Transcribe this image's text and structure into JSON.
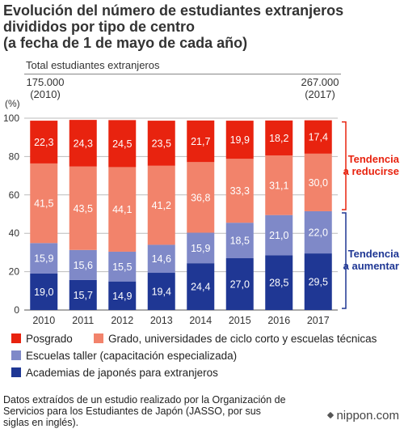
{
  "title_lines": [
    "Evolución del número de estudiantes extranjeros",
    "divididos por tipo de centro",
    "(a fecha de 1 de mayo de cada año)"
  ],
  "total_header": "Total estudiantes extranjeros",
  "total_start": {
    "value": "175.000",
    "year": "(2010)"
  },
  "total_end": {
    "value": "267.000",
    "year": "(2017)"
  },
  "chart_data": {
    "type": "bar",
    "stacked": true,
    "categories": [
      "2010",
      "2011",
      "2012",
      "2013",
      "2014",
      "2015",
      "2016",
      "2017"
    ],
    "ylabel": "(%)",
    "ylim": [
      0,
      100
    ],
    "yticks": [
      "0",
      "20",
      "40",
      "60",
      "80",
      "100"
    ],
    "series": [
      {
        "key": "academias",
        "name": "Academias de japonés para extranjeros",
        "color": "#1f3794",
        "values": [
          19.0,
          15.7,
          14.9,
          19.4,
          24.4,
          27.0,
          28.5,
          29.5
        ],
        "labels": [
          "19,0",
          "15,7",
          "14,9",
          "19,4",
          "24,4",
          "27,0",
          "28,5",
          "29,5"
        ]
      },
      {
        "key": "escuelas",
        "name": "Escuelas taller (capacitación especializada)",
        "color": "#7f89c8",
        "values": [
          15.9,
          15.6,
          15.5,
          14.6,
          15.9,
          18.5,
          21.0,
          22.0
        ],
        "labels": [
          "15,9",
          "15,6",
          "15,5",
          "14,6",
          "15,9",
          "18,5",
          "21,0",
          "22,0"
        ]
      },
      {
        "key": "grado",
        "name": "Grado, universidades de ciclo corto y escuelas técnicas",
        "color": "#f2836b",
        "values": [
          41.5,
          43.5,
          44.1,
          41.2,
          36.8,
          33.3,
          31.1,
          30.0
        ],
        "labels": [
          "41,5",
          "43,5",
          "44,1",
          "41,2",
          "36,8",
          "33,3",
          "31,1",
          "30,0"
        ]
      },
      {
        "key": "posgrado",
        "name": "Posgrado",
        "color": "#e8230f",
        "values": [
          22.3,
          24.3,
          24.5,
          23.5,
          21.7,
          19.9,
          18.2,
          17.4
        ],
        "labels": [
          "22,3",
          "24,3",
          "24,5",
          "23,5",
          "21,7",
          "19,9",
          "18,2",
          "17,4"
        ]
      }
    ],
    "annotations": [
      {
        "text_lines": [
          "Tendencia",
          "a reducirse"
        ],
        "color": "#e8230f",
        "applies_to": [
          "grado",
          "posgrado"
        ]
      },
      {
        "text_lines": [
          "Tendencia",
          "a aumentar"
        ],
        "color": "#1f3794",
        "applies_to": [
          "academias",
          "escuelas"
        ]
      }
    ]
  },
  "legend": {
    "posgrado": "Posgrado",
    "grado": "Grado, universidades de ciclo corto y escuelas técnicas",
    "escuelas": "Escuelas taller (capacitación especializada)",
    "academias": "Academias de japonés para extranjeros"
  },
  "colors": {
    "posgrado": "#e8230f",
    "grado": "#f2836b",
    "escuelas": "#7f89c8",
    "academias": "#1f3794"
  },
  "source_lines": [
    "Datos extraídos de un estudio realizado por la Organización de",
    "Servicios para los Estudiantes de Japón (JASSO, por sus",
    "siglas en inglés)."
  ],
  "brand": "nippon.com",
  "brand_icon": "nippon-logo-icon"
}
